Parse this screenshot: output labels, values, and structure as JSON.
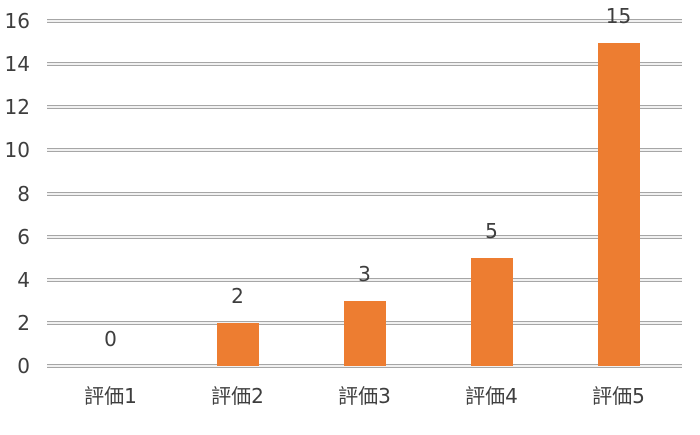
{
  "chart_data": {
    "type": "bar",
    "title": "",
    "categories": [
      "評価1",
      "評価2",
      "評価3",
      "評価4",
      "評価5"
    ],
    "values": [
      0,
      2,
      3,
      5,
      15
    ],
    "yticks": [
      0,
      2,
      4,
      6,
      8,
      10,
      12,
      14,
      16
    ],
    "ylim": [
      0,
      16
    ],
    "ytick_step": 2,
    "xlabel": "",
    "ylabel": "",
    "grid": "horizontal",
    "legend": "none",
    "data_labels": "shown-above-bars",
    "bar_color": "#ED7D31",
    "gridline_color": "#A6A6A6",
    "text_color": "#3E3E3E",
    "background_color": "#FFFFFF"
  }
}
